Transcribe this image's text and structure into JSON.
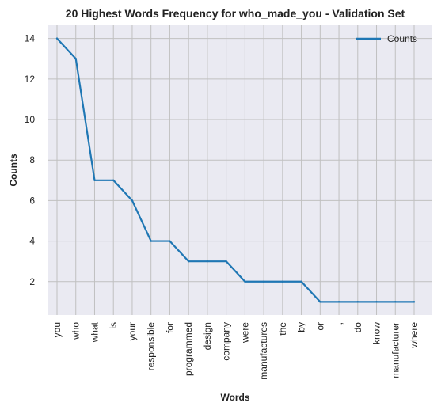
{
  "chart_data": {
    "type": "line",
    "title": "20 Highest Words Frequency for who_made_you - Validation Set",
    "xlabel": "Words",
    "ylabel": "Counts",
    "categories": [
      "you",
      "who",
      "what",
      "is",
      "your",
      "responsible",
      "for",
      "programmed",
      "design",
      "company",
      "were",
      "manufactures",
      "the",
      "by",
      "or",
      ",",
      "do",
      "know",
      "manufacturer",
      "where"
    ],
    "series": [
      {
        "name": "Counts",
        "values": [
          14,
          13,
          7,
          7,
          6,
          4,
          4,
          3,
          3,
          3,
          2,
          2,
          2,
          2,
          1,
          1,
          1,
          1,
          1,
          1
        ],
        "color": "#1f77b4"
      }
    ],
    "yticks": [
      2,
      4,
      6,
      8,
      10,
      12,
      14
    ],
    "ylim": [
      0.35,
      14.65
    ],
    "grid": true,
    "legend_position": "top-right",
    "background_color": "#eaeaf2",
    "grid_color": "#c0c0c0"
  }
}
